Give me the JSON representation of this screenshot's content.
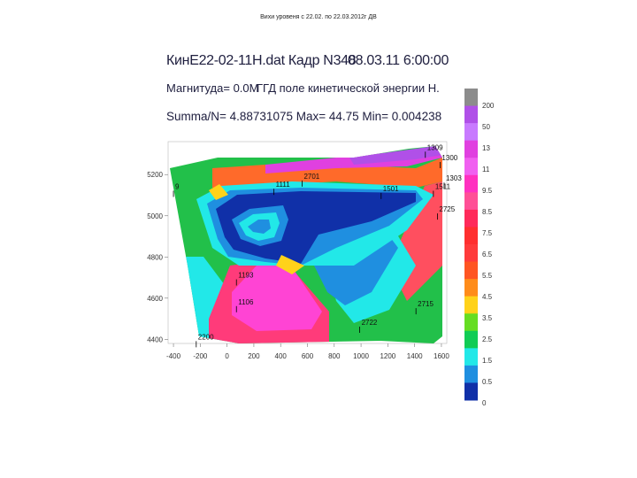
{
  "slide_title": "Вихи уровеня с 22.02. по 22.03.2012г ДВ",
  "header": {
    "line1_left": "КинЕ22-02-11Н.dat Кадр N348",
    "line1_right": "08.03.11 6:00:00",
    "line2_left": "Магнитуда= 0.0M",
    "line2_right": "ГГД поле кинетической энергии Н.",
    "line3": "Summa/N= 4.88731075 Max= 44.75 Min= 0.004238"
  },
  "chart_data": {
    "type": "heatmap",
    "title": "КинЕ22-02-11Н.dat Кадр N348",
    "x_ticks": [
      "-400",
      "-200",
      "0",
      "200",
      "400",
      "600",
      "800",
      "1000",
      "1200",
      "1400",
      "1600"
    ],
    "x_values": [
      -400,
      -200,
      0,
      200,
      400,
      600,
      800,
      1000,
      1200,
      1400,
      1600
    ],
    "xlim": [
      -440,
      1640
    ],
    "y_ticks": [
      "5200",
      "5000",
      "4800",
      "4600",
      "4400"
    ],
    "y_values": [
      5200,
      5000,
      4800,
      4600,
      4400
    ],
    "ylim": [
      4380,
      5360
    ],
    "colorbar": {
      "labels": [
        "200",
        "50",
        "13",
        "11",
        "9.5",
        "8.5",
        "7.5",
        "6.5",
        "5.5",
        "4.5",
        "3.5",
        "2.5",
        "1.5",
        "0.5",
        "0"
      ],
      "colors": [
        "#8c8c8c",
        "#b050e8",
        "#c87aff",
        "#e040e0",
        "#f060f0",
        "#ff30c0",
        "#ff4f96",
        "#ff2a5a",
        "#ff2f2f",
        "#ff3b3b",
        "#ff5522",
        "#ff8c1a",
        "#ffd21a",
        "#66dd22",
        "#11cc55",
        "#22e8e8",
        "#1f8fe0",
        "#1030a8"
      ]
    },
    "point_labels": [
      {
        "text": "1309",
        "x": 1480,
        "y": 5320
      },
      {
        "text": "1300",
        "x": 1590,
        "y": 5270
      },
      {
        "text": "1303",
        "x": 1620,
        "y": 5170
      },
      {
        "text": "2701",
        "x": 560,
        "y": 5180
      },
      {
        "text": "1511",
        "x": 1540,
        "y": 5130
      },
      {
        "text": "1501",
        "x": 1150,
        "y": 5120
      },
      {
        "text": "1111",
        "x": 350,
        "y": 5140
      },
      {
        "text": "9",
        "x": -400,
        "y": 5130
      },
      {
        "text": "2725",
        "x": 1570,
        "y": 5020
      },
      {
        "text": "2715",
        "x": 1410,
        "y": 4560
      },
      {
        "text": "2722",
        "x": 990,
        "y": 4470
      },
      {
        "text": "2200",
        "x": -230,
        "y": 4400
      },
      {
        "text": "1193",
        "x": 70,
        "y": 4700
      },
      {
        "text": "1106",
        "x": 70,
        "y": 4570
      }
    ]
  }
}
